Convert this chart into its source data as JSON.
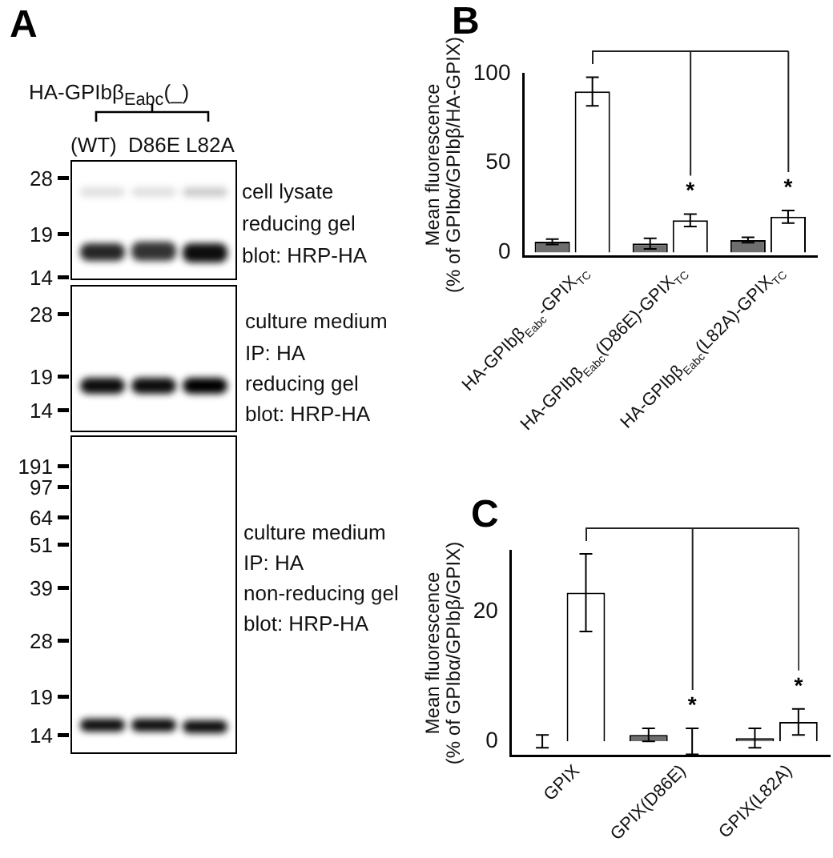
{
  "chart_data": [
    {
      "type": "other",
      "title": "A",
      "annotations": [
        "HA-GPIbβ$_{Eabc}$(_)",
        "(WT)",
        "D86E",
        "L82A",
        "28",
        "19",
        "14",
        "cell lysate",
        "reducing gel",
        "blot: HRP-HA",
        "28",
        "19",
        "14",
        "culture medium",
        "IP: HA",
        "reducing gel",
        "blot: HRP-HA",
        "191",
        "97",
        "64",
        "51",
        "39",
        "28",
        "19",
        "14",
        "culture medium",
        "IP: HA",
        "non-reducing gel",
        "blot: HRP-HA"
      ]
    },
    {
      "type": "bar",
      "title": "B",
      "ylabel": "Mean fluorescence\n(% of GPIbα/GPIbβ/HA-GPIX)",
      "categories": [
        "HA-GPIbβ$_{Eabc}$-GPIX$_{TC}$",
        "HA-GPIbβ$_{Eabc}$(D86E)-GPIX$_{TC}$",
        "HA-GPIbβ$_{Eabc}$(L82A)-GPIX$_{TC}$"
      ],
      "ylim": [
        -2,
        100
      ],
      "yticks": [
        0,
        50,
        100
      ],
      "series": [
        {
          "color": "#6e6e6e",
          "values": [
            6,
            5,
            7
          ],
          "errors": [
            1.5,
            3,
            1.5
          ]
        },
        {
          "color": "#ffffff",
          "values": [
            90,
            18,
            20
          ],
          "errors": [
            8,
            3.5,
            3.5
          ]
        }
      ],
      "annotations": [
        "*",
        "*"
      ]
    },
    {
      "type": "bar",
      "title": "C",
      "ylabel": "Mean fluorescence\n(% of GPIbα/GPIbβ/GPIX)",
      "categories": [
        "GPIX",
        "GPIX(D86E)",
        "GPIX(L82A)"
      ],
      "ylim": [
        -2.2,
        29.5
      ],
      "yticks": [
        0,
        20
      ],
      "series": [
        {
          "color": "#6e6e6e",
          "values": [
            0,
            1,
            0.5
          ],
          "errors": [
            1,
            1,
            1.5
          ]
        },
        {
          "color": "#ffffff",
          "values": [
            23,
            0,
            3
          ],
          "errors": [
            6,
            2,
            2
          ]
        }
      ],
      "annotations": [
        "*",
        "*"
      ]
    }
  ]
}
